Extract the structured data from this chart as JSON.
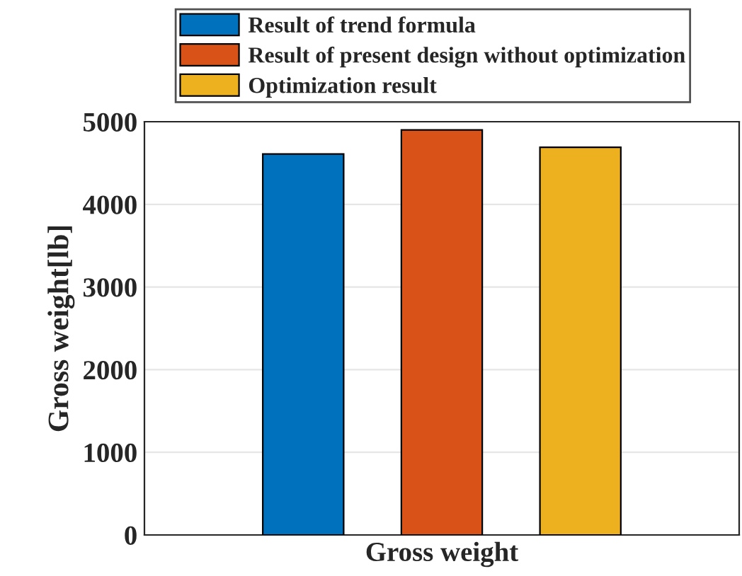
{
  "chart_data": {
    "type": "bar",
    "ylabel": "Gross weight[lb]",
    "categories": [
      "Gross weight"
    ],
    "series": [
      {
        "name": "Result of trend formula",
        "color": "#0072bd",
        "values": [
          4610
        ]
      },
      {
        "name": "Result of present design without optimization",
        "color": "#d95319",
        "values": [
          4900
        ]
      },
      {
        "name": "Optimization result",
        "color": "#edb120",
        "values": [
          4690
        ]
      }
    ],
    "ylim": [
      0,
      5000
    ],
    "yticks": [
      0,
      1000,
      2000,
      3000,
      4000,
      5000
    ],
    "grid": "y",
    "legend": "top"
  }
}
